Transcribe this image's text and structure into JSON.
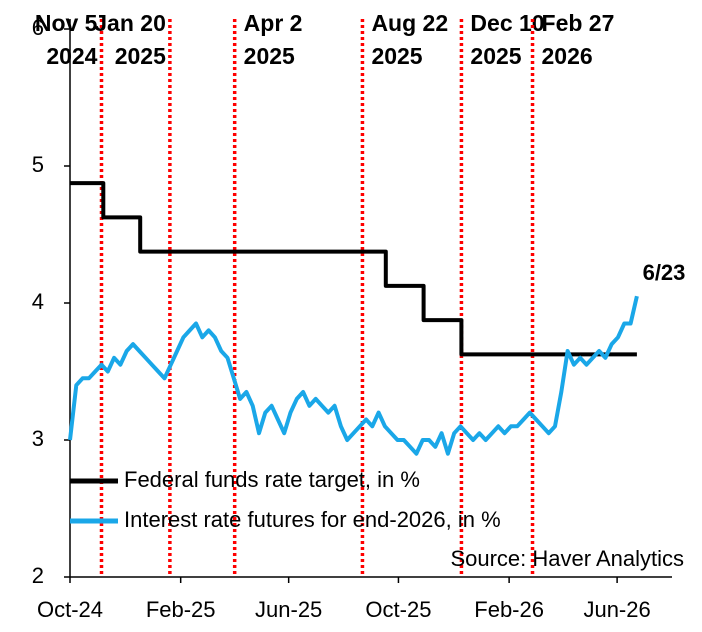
{
  "chart_data": {
    "type": "line",
    "xlim": [
      "2024-10-01",
      "2026-08-01"
    ],
    "xticks": [
      {
        "value": "2024-10-01",
        "label": "Oct-24"
      },
      {
        "value": "2025-02-01",
        "label": "Feb-25"
      },
      {
        "value": "2025-06-01",
        "label": "Jun-25"
      },
      {
        "value": "2025-10-01",
        "label": "Oct-25"
      },
      {
        "value": "2026-02-01",
        "label": "Feb-26"
      },
      {
        "value": "2026-06-01",
        "label": "Jun-26"
      }
    ],
    "ylim": [
      2,
      6
    ],
    "yticks": [
      2,
      3,
      4,
      5,
      6
    ],
    "grid": false,
    "legend": "lower left",
    "series": [
      {
        "name": "Federal funds rate target, in %",
        "color": "#000000",
        "x": [
          "2024-10-01",
          "2024-11-07",
          "2024-11-07",
          "2024-12-18",
          "2024-12-18",
          "2025-09-17",
          "2025-09-17",
          "2025-10-29",
          "2025-10-29",
          "2025-12-10",
          "2025-12-10",
          "2026-06-23"
        ],
        "values": [
          4.875,
          4.875,
          4.625,
          4.625,
          4.375,
          4.375,
          4.125,
          4.125,
          3.875,
          3.875,
          3.625,
          3.625
        ]
      },
      {
        "name": "Interest rate futures for end-2026, in %",
        "color": "#1aa7e8",
        "x": [
          "2024-10-01",
          "2024-10-08",
          "2024-10-15",
          "2024-10-22",
          "2024-10-29",
          "2024-11-05",
          "2024-11-12",
          "2024-11-19",
          "2024-11-26",
          "2024-12-03",
          "2024-12-10",
          "2024-12-17",
          "2024-12-24",
          "2024-12-31",
          "2025-01-07",
          "2025-01-14",
          "2025-01-21",
          "2025-01-28",
          "2025-02-04",
          "2025-02-11",
          "2025-02-18",
          "2025-02-25",
          "2025-03-04",
          "2025-03-11",
          "2025-03-18",
          "2025-03-25",
          "2025-04-01",
          "2025-04-08",
          "2025-04-15",
          "2025-04-22",
          "2025-04-29",
          "2025-05-06",
          "2025-05-13",
          "2025-05-20",
          "2025-05-27",
          "2025-06-03",
          "2025-06-10",
          "2025-06-17",
          "2025-06-24",
          "2025-07-01",
          "2025-07-08",
          "2025-07-15",
          "2025-07-22",
          "2025-07-29",
          "2025-08-05",
          "2025-08-12",
          "2025-08-19",
          "2025-08-26",
          "2025-09-02",
          "2025-09-09",
          "2025-09-16",
          "2025-09-23",
          "2025-09-30",
          "2025-10-07",
          "2025-10-14",
          "2025-10-21",
          "2025-10-28",
          "2025-11-04",
          "2025-11-11",
          "2025-11-18",
          "2025-11-25",
          "2025-12-02",
          "2025-12-09",
          "2025-12-16",
          "2025-12-23",
          "2025-12-30",
          "2026-01-06",
          "2026-01-13",
          "2026-01-20",
          "2026-01-27",
          "2026-02-03",
          "2026-02-10",
          "2026-02-17",
          "2026-02-24",
          "2026-03-03",
          "2026-03-10",
          "2026-03-17",
          "2026-03-24",
          "2026-03-31",
          "2026-04-07",
          "2026-04-14",
          "2026-04-21",
          "2026-04-28",
          "2026-05-05",
          "2026-05-12",
          "2026-05-19",
          "2026-05-26",
          "2026-06-02",
          "2026-06-09",
          "2026-06-16",
          "2026-06-23"
        ],
        "values": [
          3.0,
          3.4,
          3.45,
          3.45,
          3.5,
          3.55,
          3.5,
          3.6,
          3.55,
          3.65,
          3.7,
          3.65,
          3.6,
          3.55,
          3.5,
          3.45,
          3.55,
          3.65,
          3.75,
          3.8,
          3.85,
          3.75,
          3.8,
          3.75,
          3.65,
          3.6,
          3.45,
          3.3,
          3.35,
          3.25,
          3.05,
          3.2,
          3.25,
          3.15,
          3.05,
          3.2,
          3.3,
          3.35,
          3.25,
          3.3,
          3.25,
          3.2,
          3.25,
          3.1,
          3.0,
          3.05,
          3.1,
          3.15,
          3.1,
          3.2,
          3.1,
          3.05,
          3.0,
          3.0,
          2.95,
          2.9,
          3.0,
          3.0,
          2.95,
          3.05,
          2.9,
          3.05,
          3.1,
          3.05,
          3.0,
          3.05,
          3.0,
          3.05,
          3.1,
          3.05,
          3.1,
          3.1,
          3.15,
          3.2,
          3.15,
          3.1,
          3.05,
          3.1,
          3.35,
          3.65,
          3.55,
          3.6,
          3.55,
          3.6,
          3.65,
          3.6,
          3.7,
          3.75,
          3.85,
          3.85,
          4.05
        ]
      }
    ],
    "end_label": "6/23",
    "events_color": "#ff0000",
    "events": [
      {
        "x": "2024-11-05",
        "lines": [
          "Nov 5",
          "2024"
        ]
      },
      {
        "x": "2025-01-20",
        "lines": [
          "Jan 20",
          "2025"
        ]
      },
      {
        "x": "2025-04-02",
        "lines": [
          "Apr 2",
          "2025"
        ]
      },
      {
        "x": "2025-08-22",
        "lines": [
          "Aug 22",
          "2025"
        ]
      },
      {
        "x": "2025-12-10",
        "lines": [
          "Dec 10",
          "2025"
        ]
      },
      {
        "x": "2026-02-27",
        "lines": [
          "Feb 27",
          "2026"
        ]
      }
    ],
    "source": "Source: Haver Analytics"
  }
}
